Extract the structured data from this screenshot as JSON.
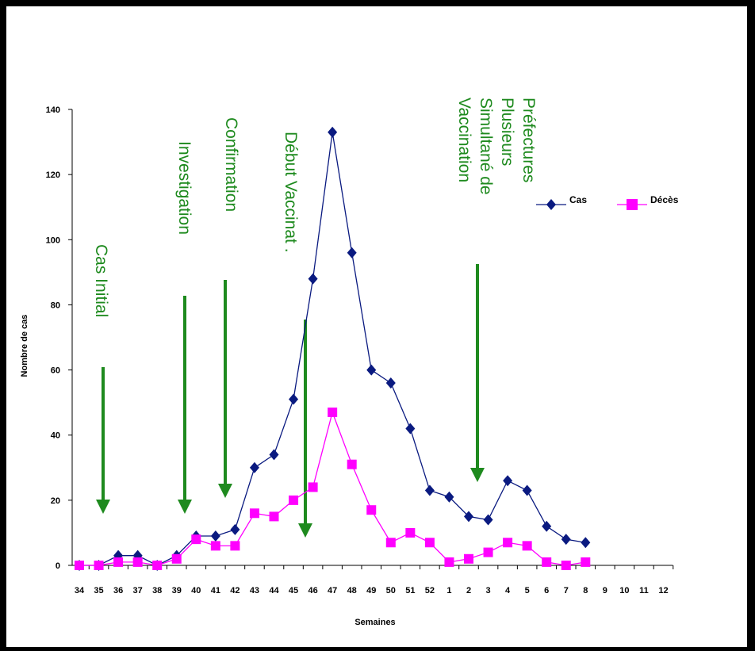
{
  "chart_data": {
    "type": "line",
    "xlabel": "Semaines",
    "ylabel": "Nombre de cas",
    "ylim": [
      0,
      140
    ],
    "yticks": [
      0,
      20,
      40,
      60,
      80,
      100,
      120,
      140
    ],
    "categories": [
      "34",
      "35",
      "36",
      "37",
      "38",
      "39",
      "40",
      "41",
      "42",
      "43",
      "44",
      "45",
      "46",
      "47",
      "48",
      "49",
      "50",
      "51",
      "52",
      "1",
      "2",
      "3",
      "4",
      "5",
      "6",
      "7",
      "8",
      "9",
      "10",
      "11",
      "12"
    ],
    "series": [
      {
        "name": "Cas",
        "color": "#0a1a80",
        "marker": "diamond",
        "values": [
          0,
          0,
          3,
          3,
          0,
          3,
          9,
          9,
          11,
          30,
          34,
          51,
          88,
          133,
          96,
          60,
          56,
          42,
          23,
          21,
          15,
          14,
          26,
          23,
          12,
          8,
          7,
          null,
          null,
          null,
          null
        ]
      },
      {
        "name": "Décès",
        "color": "#ff00ff",
        "marker": "square",
        "values": [
          0,
          0,
          1,
          1,
          0,
          2,
          8,
          6,
          6,
          16,
          15,
          20,
          24,
          47,
          31,
          17,
          7,
          10,
          7,
          1,
          2,
          4,
          7,
          6,
          1,
          0,
          1,
          null,
          null,
          null,
          null
        ]
      }
    ],
    "legend_position": "right",
    "annotations": [
      {
        "text": "Cas Initial",
        "week": "35"
      },
      {
        "text": "Investigation",
        "week": "39"
      },
      {
        "text": "Confirmation",
        "week": "41"
      },
      {
        "text": "Début  Vaccinat  .",
        "week": "45"
      },
      {
        "text": "Vaccination Simultané de Plusieurs Préfectures",
        "week": "2"
      }
    ],
    "annotation_color": "#1e8a1e"
  }
}
